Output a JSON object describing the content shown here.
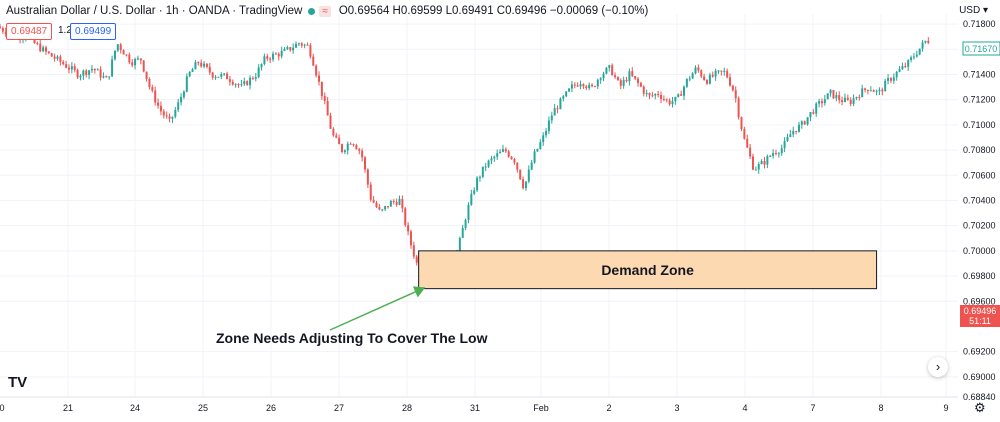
{
  "header": {
    "symbol": "Australian Dollar / U.S. Dollar · 1h · OANDA · TradingView",
    "ohlc": "O0.69564 H0.69599 L0.69491 C0.69496 −0.00069 (−0.10%)",
    "sell_price": "0.69487",
    "spread": "1.2",
    "buy_price": "0.69499",
    "currency": "USD"
  },
  "annotations": {
    "zone_label": "Demand Zone",
    "callout": "Zone Needs Adjusting To Cover The Low"
  },
  "price_tags": {
    "top_tag": "0.71670",
    "last_price": "0.69496",
    "countdown": "51:11"
  },
  "colors": {
    "up": "#26a69a",
    "down": "#ef5350",
    "zone_fill": "#fcd9b0",
    "zone_border": "#131722",
    "arrow": "#4caf50",
    "grid": "#f0f3fa"
  },
  "icons": {
    "logo": "tradingview-logo-icon",
    "scroll": "scroll-right-icon",
    "settings": "gear-icon"
  },
  "chart_data": {
    "type": "candlestick",
    "title": "Australian Dollar / U.S. Dollar · 1h · OANDA · TradingView",
    "ylim": [
      0.6884,
      0.7188
    ],
    "y_ticks": [
      "0.71800",
      "0.71600",
      "0.71400",
      "0.71200",
      "0.71000",
      "0.70800",
      "0.70600",
      "0.70400",
      "0.70200",
      "0.70000",
      "0.69800",
      "0.69600",
      "0.69200",
      "0.69000",
      "0.68840"
    ],
    "x_ticks": [
      "0",
      "21",
      "24",
      "25",
      "26",
      "27",
      "28",
      "31",
      "Feb",
      "2",
      "3",
      "4",
      "7",
      "8",
      "9"
    ],
    "x_range": [
      0,
      100
    ],
    "path_points": [
      [
        0,
        0.7178
      ],
      [
        1.5,
        0.7172
      ],
      [
        3,
        0.717
      ],
      [
        5,
        0.7158
      ],
      [
        7,
        0.7148
      ],
      [
        8.5,
        0.714
      ],
      [
        10,
        0.7145
      ],
      [
        11.5,
        0.7135
      ],
      [
        12.5,
        0.7165
      ],
      [
        14,
        0.715
      ],
      [
        15,
        0.7152
      ],
      [
        16,
        0.7128
      ],
      [
        17,
        0.7112
      ],
      [
        18,
        0.7102
      ],
      [
        19,
        0.7118
      ],
      [
        20,
        0.714
      ],
      [
        21,
        0.715
      ],
      [
        22.5,
        0.714
      ],
      [
        24,
        0.7138
      ],
      [
        25.5,
        0.713
      ],
      [
        27,
        0.714
      ],
      [
        28,
        0.7153
      ],
      [
        30,
        0.7158
      ],
      [
        31.5,
        0.7165
      ],
      [
        32.5,
        0.7162
      ],
      [
        33,
        0.715
      ],
      [
        34,
        0.7122
      ],
      [
        35,
        0.7092
      ],
      [
        36,
        0.708
      ],
      [
        37,
        0.7088
      ],
      [
        38,
        0.7078
      ],
      [
        39,
        0.7042
      ],
      [
        40,
        0.703
      ],
      [
        41,
        0.7038
      ],
      [
        42,
        0.704
      ],
      [
        43,
        0.701
      ],
      [
        44,
        0.6985
      ],
      [
        45,
        0.6982
      ],
      [
        46,
        0.699
      ],
      [
        47,
        0.6988
      ],
      [
        48,
        0.6998
      ],
      [
        49,
        0.703
      ],
      [
        50,
        0.7055
      ],
      [
        51,
        0.7068
      ],
      [
        52,
        0.7075
      ],
      [
        53,
        0.708
      ],
      [
        54,
        0.7072
      ],
      [
        55,
        0.705
      ],
      [
        56,
        0.7075
      ],
      [
        57,
        0.709
      ],
      [
        58,
        0.711
      ],
      [
        59,
        0.712
      ],
      [
        60,
        0.713
      ],
      [
        61,
        0.7135
      ],
      [
        62,
        0.7128
      ],
      [
        63,
        0.714
      ],
      [
        64,
        0.7145
      ],
      [
        65,
        0.713
      ],
      [
        66,
        0.714
      ],
      [
        67,
        0.7132
      ],
      [
        68,
        0.7122
      ],
      [
        69,
        0.7125
      ],
      [
        70,
        0.7118
      ],
      [
        71,
        0.712
      ],
      [
        72,
        0.7135
      ],
      [
        73,
        0.7145
      ],
      [
        74,
        0.7135
      ],
      [
        75,
        0.714
      ],
      [
        76,
        0.7142
      ],
      [
        77,
        0.7125
      ],
      [
        77.5,
        0.7105
      ],
      [
        78,
        0.7088
      ],
      [
        79,
        0.7065
      ],
      [
        80,
        0.707
      ],
      [
        81,
        0.7078
      ],
      [
        82,
        0.7082
      ],
      [
        83,
        0.7095
      ],
      [
        84,
        0.71
      ],
      [
        85,
        0.711
      ],
      [
        86,
        0.7118
      ],
      [
        87,
        0.7125
      ],
      [
        88,
        0.712
      ],
      [
        89,
        0.7118
      ],
      [
        90,
        0.7125
      ],
      [
        91,
        0.713
      ],
      [
        92,
        0.7125
      ],
      [
        93,
        0.7135
      ],
      [
        94,
        0.7142
      ],
      [
        95,
        0.7148
      ],
      [
        96,
        0.7158
      ],
      [
        97,
        0.7167
      ]
    ],
    "demand_zone": {
      "x_start": 43.7,
      "x_end": 91.5,
      "price_top": 0.7,
      "price_bottom": 0.697
    },
    "callout_target": {
      "x": 44.4,
      "price": 0.6971
    }
  }
}
